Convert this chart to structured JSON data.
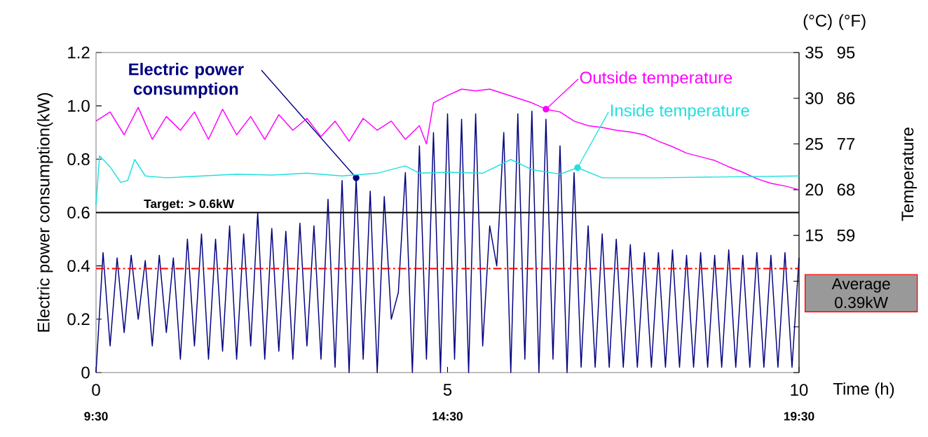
{
  "chart_data": {
    "type": "line",
    "xlabel": "Time (h)",
    "ylabel": "Electric power consumption(kW)",
    "y2label": "Temperature",
    "annotations": [
      "(°C)",
      "(°F)"
    ],
    "xlim": [
      0,
      10
    ],
    "xticks": [
      0,
      5,
      10
    ],
    "x2lim": [
      9.5,
      19.5
    ],
    "x2ticks": [
      {
        "value": 9.5,
        "label": "9:30"
      },
      {
        "value": 14.5,
        "label": "14:30"
      },
      {
        "value": 19.5,
        "label": "19:30"
      }
    ],
    "ylim": [
      0,
      1.2
    ],
    "yticks": [
      0,
      0.2,
      0.4,
      0.6,
      0.8,
      {
        "value": 1.0,
        "label": "1.0"
      },
      1.2
    ],
    "y2lim": [
      0,
      35
    ],
    "y2ticks": [
      {
        "value": 0,
        "label": null
      },
      {
        "value": 5,
        "label": null
      },
      {
        "value": 10,
        "label": null
      },
      15,
      20,
      25,
      30,
      35
    ],
    "y3lim": [
      32,
      95
    ],
    "y3ticks": [
      59,
      68,
      77,
      86,
      95
    ],
    "ref_lines": [
      {
        "axis": "y",
        "value": 0.6,
        "label": "Target: > 0.6kW",
        "color": "#000000",
        "line_style": "solid"
      },
      {
        "axis": "y",
        "value": 0.39,
        "label": "Average 0.39kW",
        "color": "#ff0000",
        "line_style": "dashdot"
      }
    ],
    "series": [
      {
        "name": "Electric power consumption",
        "color": "#000080",
        "x": [
          0,
          0.1,
          0.2,
          0.3,
          0.4,
          0.5,
          0.6,
          0.7,
          0.8,
          0.9,
          1,
          1.1,
          1.2,
          1.3,
          1.4,
          1.5,
          1.6,
          1.7,
          1.8,
          1.9,
          2,
          2.1,
          2.2,
          2.3,
          2.4,
          2.5,
          2.6,
          2.7,
          2.8,
          2.9,
          3,
          3.1,
          3.2,
          3.3,
          3.4,
          3.5,
          3.6,
          3.7,
          3.8,
          3.9,
          4,
          4.1,
          4.2,
          4.3,
          4.4,
          4.5,
          4.6,
          4.7,
          4.8,
          4.9,
          5,
          5.1,
          5.2,
          5.3,
          5.4,
          5.5,
          5.6,
          5.7,
          5.8,
          5.9,
          6,
          6.1,
          6.2,
          6.3,
          6.4,
          6.5,
          6.6,
          6.7,
          6.8,
          6.9,
          7,
          7.1,
          7.2,
          7.3,
          7.4,
          7.5,
          7.6,
          7.7,
          7.8,
          7.9,
          8,
          8.1,
          8.2,
          8.3,
          8.4,
          8.5,
          8.6,
          8.7,
          8.8,
          8.9,
          9,
          9.1,
          9.2,
          9.3,
          9.4,
          9.5,
          9.6,
          9.7,
          9.8,
          9.9,
          10
        ],
        "values": [
          0,
          0.45,
          0.1,
          0.43,
          0.15,
          0.44,
          0.2,
          0.42,
          0.1,
          0.44,
          0.15,
          0.43,
          0.05,
          0.5,
          0.1,
          0.52,
          0.05,
          0.5,
          0.08,
          0.55,
          0.05,
          0.52,
          0.1,
          0.6,
          0.05,
          0.54,
          0.08,
          0.53,
          0.05,
          0.56,
          0.1,
          0.55,
          0.05,
          0.65,
          0.02,
          0.72,
          0,
          0.73,
          0.05,
          0.68,
          0,
          0.66,
          0.2,
          0.3,
          0.75,
          0,
          0.85,
          0.05,
          0.9,
          0,
          0.97,
          0.05,
          0.95,
          0,
          0.97,
          0.1,
          0.55,
          0.4,
          0.9,
          0,
          0.97,
          0.05,
          0.98,
          0,
          0.95,
          0.05,
          0.85,
          0,
          0.75,
          0.02,
          0.55,
          0.02,
          0.52,
          0.02,
          0.5,
          0.02,
          0.48,
          0.02,
          0.45,
          0.02,
          0.45,
          0.02,
          0.46,
          0.02,
          0.44,
          0.02,
          0.45,
          0.02,
          0.44,
          0.02,
          0.46,
          0.02,
          0.44,
          0.02,
          0.45,
          0.02,
          0.44,
          0.02,
          0.45,
          0.02,
          0.43
        ]
      },
      {
        "name": "Outside temperature",
        "color": "#ff00ff",
        "axis": "y2",
        "x": [
          0,
          0.2,
          0.4,
          0.6,
          0.8,
          1,
          1.2,
          1.4,
          1.6,
          1.8,
          2,
          2.2,
          2.4,
          2.6,
          2.8,
          3,
          3.2,
          3.4,
          3.6,
          3.8,
          4,
          4.2,
          4.4,
          4.6,
          4.7,
          4.8,
          5,
          5.2,
          5.4,
          5.6,
          5.8,
          6,
          6.2,
          6.4,
          6.6,
          6.8,
          7,
          7.2,
          7.4,
          7.6,
          7.8,
          8,
          8.2,
          8.4,
          8.6,
          8.8,
          9,
          9.2,
          9.4,
          9.6,
          9.8,
          10
        ],
        "values": [
          27.5,
          28.5,
          26,
          29,
          25.5,
          28,
          26.5,
          28.5,
          25.5,
          28.8,
          26,
          28,
          25.5,
          28.2,
          26.5,
          27.8,
          25.8,
          27.5,
          25.3,
          27.8,
          26.5,
          27.5,
          25.5,
          27,
          25,
          29.5,
          30.3,
          31,
          30.8,
          31,
          30.5,
          30,
          29.5,
          28.8,
          28.5,
          27.5,
          27,
          26.8,
          26.5,
          26.3,
          26,
          25.3,
          24.7,
          24,
          23.6,
          23.2,
          22.5,
          21.9,
          21.2,
          20.7,
          20.4,
          20
        ]
      },
      {
        "name": "Inside temperature",
        "color": "#20e0e0",
        "axis": "y2",
        "x": [
          0,
          0.05,
          0.2,
          0.35,
          0.45,
          0.55,
          0.7,
          1,
          1.5,
          2,
          2.5,
          3,
          3.5,
          4,
          4.4,
          4.6,
          5,
          5.5,
          5.9,
          6.2,
          6.6,
          6.85,
          7.2,
          8,
          9,
          10
        ],
        "values": [
          18.3,
          23.7,
          22.5,
          20.8,
          21,
          23.3,
          21.5,
          21.3,
          21.5,
          21.7,
          21.6,
          21.8,
          21.5,
          21.8,
          22.6,
          21.8,
          21.9,
          21.8,
          23.3,
          22.2,
          21.7,
          22.4,
          21.3,
          21.3,
          21.4,
          21.5
        ]
      }
    ]
  }
}
